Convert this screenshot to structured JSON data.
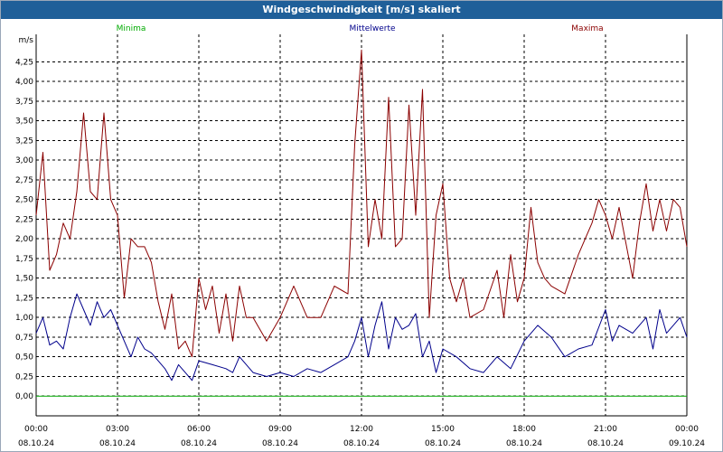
{
  "window": {
    "title": "Windgeschwindigkeit [m/s] skaliert"
  },
  "chart_data": {
    "type": "line",
    "title": "Windgeschwindigkeit [m/s] skaliert",
    "ylabel": "m/s",
    "ylim": [
      -0.25,
      4.6
    ],
    "xlim": [
      0,
      24
    ],
    "grid": true,
    "yticks": [
      "0,00",
      "0,25",
      "0,50",
      "0,75",
      "1,00",
      "1,25",
      "1,50",
      "1,75",
      "2,00",
      "2,25",
      "2,50",
      "2,75",
      "3,00",
      "3,25",
      "3,50",
      "3,75",
      "4,00",
      "4,25"
    ],
    "xticks": [
      {
        "time": "00:00",
        "date": "08.10.24"
      },
      {
        "time": "03:00",
        "date": "08.10.24"
      },
      {
        "time": "06:00",
        "date": "08.10.24"
      },
      {
        "time": "09:00",
        "date": "08.10.24"
      },
      {
        "time": "12:00",
        "date": "08.10.24"
      },
      {
        "time": "15:00",
        "date": "08.10.24"
      },
      {
        "time": "18:00",
        "date": "08.10.24"
      },
      {
        "time": "21:00",
        "date": "08.10.24"
      },
      {
        "time": "00:00",
        "date": "09.10.24"
      }
    ],
    "legend": [
      "Minima",
      "Mittelwerte",
      "Maxima"
    ],
    "series": [
      {
        "name": "Minima",
        "color": "#00aa00",
        "x": [
          0,
          24
        ],
        "values": [
          0,
          0
        ]
      },
      {
        "name": "Mittelwerte",
        "color": "#00008b",
        "x": [
          0,
          0.25,
          0.5,
          0.75,
          1,
          1.25,
          1.5,
          1.75,
          2,
          2.25,
          2.5,
          2.75,
          3,
          3.25,
          3.5,
          3.75,
          4,
          4.25,
          4.5,
          4.75,
          5,
          5.25,
          5.5,
          5.75,
          6,
          6.5,
          7,
          7.25,
          7.5,
          8,
          8.5,
          9,
          9.5,
          10,
          10.5,
          11,
          11.5,
          11.75,
          12,
          12.25,
          12.5,
          12.75,
          13,
          13.25,
          13.5,
          13.75,
          14,
          14.25,
          14.5,
          14.75,
          15,
          15.5,
          16,
          16.5,
          17,
          17.5,
          18,
          18.5,
          19,
          19.5,
          20,
          20.5,
          21,
          21.25,
          21.5,
          22,
          22.5,
          22.75,
          23,
          23.25,
          23.5,
          23.75,
          24
        ],
        "values": [
          0.8,
          1.0,
          0.65,
          0.7,
          0.6,
          1.0,
          1.3,
          1.1,
          0.9,
          1.2,
          1.0,
          1.1,
          0.9,
          0.7,
          0.5,
          0.75,
          0.6,
          0.55,
          0.45,
          0.35,
          0.2,
          0.4,
          0.3,
          0.2,
          0.45,
          0.4,
          0.35,
          0.3,
          0.5,
          0.3,
          0.25,
          0.3,
          0.25,
          0.35,
          0.3,
          0.4,
          0.5,
          0.7,
          1.0,
          0.5,
          0.9,
          1.2,
          0.6,
          1.0,
          0.85,
          0.9,
          1.05,
          0.5,
          0.7,
          0.3,
          0.6,
          0.5,
          0.35,
          0.3,
          0.5,
          0.35,
          0.7,
          0.9,
          0.75,
          0.5,
          0.6,
          0.65,
          1.1,
          0.7,
          0.9,
          0.8,
          1.0,
          0.6,
          1.1,
          0.8,
          0.9,
          1.0,
          0.75
        ]
      },
      {
        "name": "Maxima",
        "color": "#8b0000",
        "x": [
          0,
          0.25,
          0.5,
          0.75,
          1,
          1.25,
          1.5,
          1.75,
          2,
          2.25,
          2.5,
          2.75,
          3,
          3.25,
          3.5,
          3.75,
          4,
          4.25,
          4.5,
          4.75,
          5,
          5.25,
          5.5,
          5.75,
          6,
          6.25,
          6.5,
          6.75,
          7,
          7.25,
          7.5,
          7.75,
          8,
          8.5,
          9,
          9.5,
          10,
          10.5,
          11,
          11.5,
          11.75,
          12,
          12.25,
          12.5,
          12.75,
          13,
          13.25,
          13.5,
          13.75,
          14,
          14.25,
          14.5,
          14.75,
          15,
          15.25,
          15.5,
          15.75,
          16,
          16.5,
          17,
          17.25,
          17.5,
          17.75,
          18,
          18.25,
          18.5,
          18.75,
          19,
          19.5,
          20,
          20.5,
          20.75,
          21,
          21.25,
          21.5,
          22,
          22.25,
          22.5,
          22.75,
          23,
          23.25,
          23.5,
          23.75,
          24
        ],
        "values": [
          2.3,
          3.1,
          1.6,
          1.8,
          2.2,
          2.0,
          2.6,
          3.6,
          2.6,
          2.5,
          3.6,
          2.5,
          2.3,
          1.25,
          2.0,
          1.9,
          1.9,
          1.7,
          1.2,
          0.85,
          1.3,
          0.6,
          0.7,
          0.5,
          1.5,
          1.1,
          1.4,
          0.8,
          1.3,
          0.7,
          1.4,
          1.0,
          1.0,
          0.7,
          1.0,
          1.4,
          1.0,
          1.0,
          1.4,
          1.3,
          3.2,
          4.4,
          1.9,
          2.5,
          2.0,
          3.8,
          1.9,
          2.0,
          3.7,
          2.3,
          3.9,
          1.0,
          2.3,
          2.7,
          1.5,
          1.2,
          1.5,
          1.0,
          1.1,
          1.6,
          1.0,
          1.8,
          1.2,
          1.5,
          2.4,
          1.7,
          1.5,
          1.4,
          1.3,
          1.8,
          2.2,
          2.5,
          2.3,
          2.0,
          2.4,
          1.5,
          2.2,
          2.7,
          2.1,
          2.5,
          2.1,
          2.5,
          2.4,
          1.9
        ]
      }
    ]
  }
}
